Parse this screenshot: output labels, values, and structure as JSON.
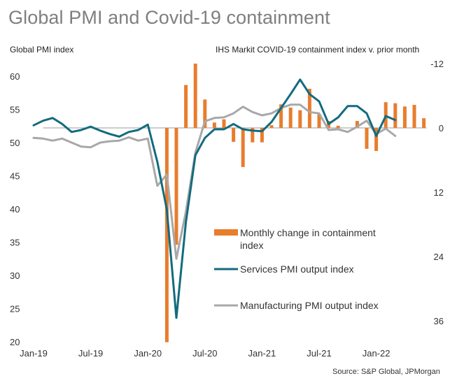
{
  "chart_data": {
    "type": "bar+line",
    "title": "Global PMI and Covid-19 containment",
    "ylabel_left": "Global PMI index",
    "ylabel_right": "IHS Markit COVID-19 containment index v. prior month",
    "source": "Source: S&P Global, JPMorgan",
    "left_axis": {
      "range": [
        20,
        62
      ],
      "ticks": [
        "20",
        "25",
        "30",
        "35",
        "40",
        "45",
        "50",
        "55",
        "60"
      ]
    },
    "right_axis": {
      "range": [
        -12,
        40
      ],
      "inverted": true,
      "ticks": [
        "-12",
        "0",
        "12",
        "24",
        "36"
      ]
    },
    "x_ticks": [
      "Jan-19",
      "Jul-19",
      "Jan-20",
      "Jul-20",
      "Jan-21",
      "Jul-21",
      "Jan-22"
    ],
    "x": [
      "Jan-19",
      "Feb-19",
      "Mar-19",
      "Apr-19",
      "May-19",
      "Jun-19",
      "Jul-19",
      "Aug-19",
      "Sep-19",
      "Oct-19",
      "Nov-19",
      "Dec-19",
      "Jan-20",
      "Feb-20",
      "Mar-20",
      "Apr-20",
      "May-20",
      "Jun-20",
      "Jul-20",
      "Aug-20",
      "Sep-20",
      "Oct-20",
      "Nov-20",
      "Dec-20",
      "Jan-21",
      "Feb-21",
      "Mar-21",
      "Apr-21",
      "May-21",
      "Jun-21",
      "Jul-21",
      "Aug-21",
      "Sep-21",
      "Oct-21",
      "Nov-21",
      "Dec-21",
      "Jan-22",
      "Feb-22",
      "Mar-22",
      "Apr-22",
      "May-22",
      "Jun-22"
    ],
    "series": [
      {
        "name": "Monthly change in containment index",
        "type": "bar",
        "axis": "right",
        "color": "#E87D2E",
        "values": [
          null,
          null,
          null,
          null,
          null,
          null,
          null,
          null,
          null,
          null,
          null,
          null,
          null,
          null,
          40.0,
          21.8,
          -8.0,
          -12.0,
          -5.3,
          -1.0,
          -1.6,
          2.6,
          7.3,
          2.7,
          2.7,
          -0.5,
          -4.4,
          -3.8,
          -3.3,
          -7.3,
          -2.6,
          -1.3,
          -0.4,
          0,
          -1.3,
          3.9,
          4.3,
          -4.8,
          -4.6,
          -4.0,
          -4.3,
          -1.8
        ]
      },
      {
        "name": "Services PMI output index",
        "type": "line",
        "axis": "left",
        "color": "#136B7E",
        "values": [
          52.6,
          53.3,
          53.7,
          52.8,
          51.6,
          51.9,
          52.4,
          51.8,
          51.3,
          50.9,
          51.6,
          51.9,
          52.7,
          47.1,
          39.9,
          23.6,
          38.0,
          48.1,
          50.7,
          52.0,
          52.0,
          52.8,
          52.0,
          51.8,
          51.7,
          53.1,
          55.2,
          57.3,
          59.5,
          57.3,
          56.2,
          52.8,
          53.8,
          55.5,
          55.5,
          54.4,
          51.0,
          54.0,
          53.4,
          null,
          null,
          null
        ]
      },
      {
        "name": "Manufacturing PMI output index",
        "type": "line",
        "axis": "left",
        "color": "#A8A8A8",
        "values": [
          50.7,
          50.6,
          50.3,
          50.6,
          50.0,
          49.4,
          49.3,
          50.0,
          50.2,
          50.3,
          50.8,
          50.3,
          50.6,
          43.5,
          45.2,
          32.5,
          39.6,
          48.5,
          53.2,
          53.7,
          53.8,
          54.4,
          55.4,
          54.6,
          54.1,
          54.4,
          55.2,
          55.7,
          55.7,
          54.6,
          54.4,
          51.9,
          52.0,
          51.6,
          52.4,
          53.3,
          51.3,
          52.1,
          51.0,
          null,
          null,
          null
        ]
      }
    ],
    "legend": {
      "placement": "lower-right",
      "items": [
        {
          "label_line1": "Monthly change in containment",
          "label_line2": "index"
        },
        {
          "label_line1": "Services PMI output index"
        },
        {
          "label_line1": "Manufacturing PMI output index"
        }
      ]
    },
    "grid": false
  }
}
